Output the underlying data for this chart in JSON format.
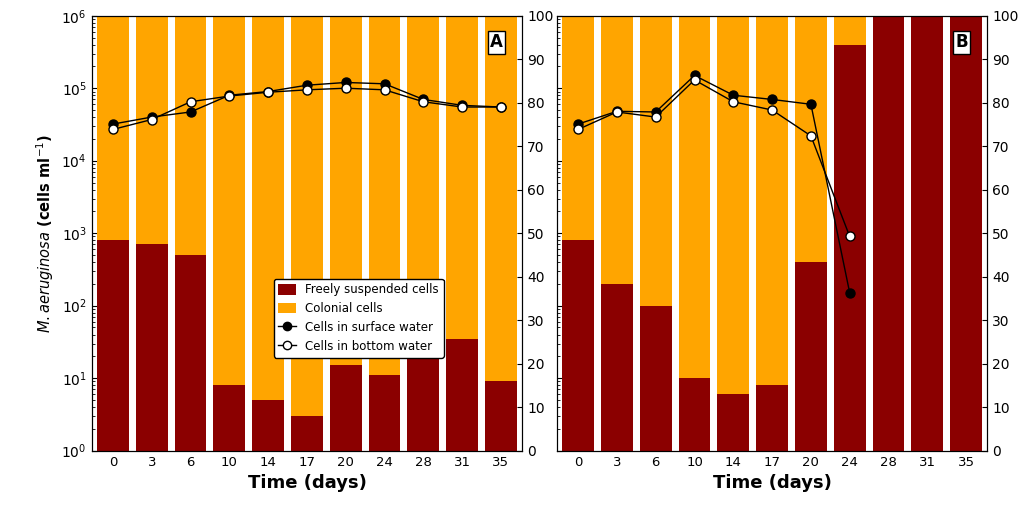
{
  "days": [
    0,
    3,
    6,
    10,
    14,
    17,
    20,
    24,
    28,
    31,
    35
  ],
  "A_freely_suspended": [
    800,
    700,
    500,
    8,
    5,
    3,
    15,
    11,
    25,
    35,
    9
  ],
  "A_colonial_top": [
    999200,
    999300,
    999500,
    999992,
    999995,
    999997,
    999985,
    999989,
    999975,
    999965,
    999991
  ],
  "A_surface": [
    32000,
    40000,
    47000,
    80000,
    90000,
    110000,
    120000,
    115000,
    70000,
    58000,
    55000
  ],
  "A_bottom": [
    27000,
    37000,
    65000,
    78000,
    88000,
    95000,
    100000,
    95000,
    65000,
    55000,
    55000
  ],
  "B_freely_suspended": [
    800,
    200,
    100,
    10,
    6,
    8,
    400,
    400000,
    1000000,
    1000000,
    1000000
  ],
  "B_colonial_top": [
    999200,
    999800,
    999900,
    999990,
    999994,
    999992,
    999600,
    600000,
    1,
    1,
    1
  ],
  "B_surface": [
    32000,
    48000,
    47000,
    150000,
    80000,
    70000,
    60000,
    150,
    null,
    null,
    null
  ],
  "B_bottom": [
    27000,
    47000,
    40000,
    130000,
    65000,
    50000,
    22000,
    900,
    null,
    null,
    null
  ],
  "orange_color": "#FFA500",
  "darkred_color": "#8B0000",
  "ylim_log": [
    1.0,
    1000000.0
  ],
  "ylim_pct": [
    0,
    100
  ],
  "bar_width": 0.82
}
